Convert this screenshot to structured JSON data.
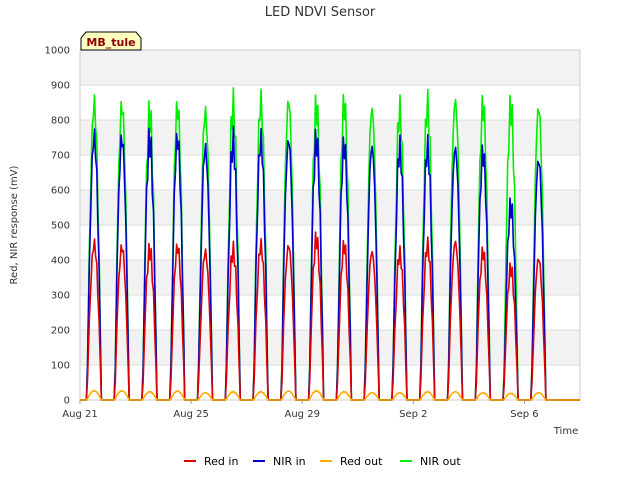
{
  "chart_data": {
    "type": "line",
    "title": "LED NDVI Sensor",
    "xlabel": "Time",
    "ylabel": "Red, NIR response (mV)",
    "ylim": [
      0,
      1000
    ],
    "yticks": [
      0,
      100,
      200,
      300,
      400,
      500,
      600,
      700,
      800,
      900,
      1000
    ],
    "xlim": [
      "2023-08-21",
      "2023-09-08"
    ],
    "xticks": [
      {
        "date": "2023-08-21",
        "label": "Aug 21"
      },
      {
        "date": "2023-08-25",
        "label": "Aug 25"
      },
      {
        "date": "2023-08-29",
        "label": "Aug 29"
      },
      {
        "date": "2023-09-02",
        "label": "Sep 2"
      },
      {
        "date": "2023-09-06",
        "label": "Sep 6"
      }
    ],
    "grid": true,
    "legend_position": "bottom",
    "site_label": "MB_tule",
    "days": [
      "2023-08-21",
      "2023-08-22",
      "2023-08-23",
      "2023-08-24",
      "2023-08-25",
      "2023-08-26",
      "2023-08-27",
      "2023-08-28",
      "2023-08-29",
      "2023-08-30",
      "2023-08-31",
      "2023-09-01",
      "2023-09-02",
      "2023-09-03",
      "2023-09-04",
      "2023-09-05",
      "2023-09-06",
      "2023-09-07"
    ],
    "series": [
      {
        "name": "Red in",
        "color": "#dd0000",
        "daily_peak": [
          475,
          465,
          455,
          465,
          450,
          455,
          470,
          470,
          490,
          470,
          450,
          445,
          470,
          480,
          450,
          400,
          430,
          0
        ]
      },
      {
        "name": "NIR in",
        "color": "#0000cc",
        "daily_peak": [
          800,
          795,
          790,
          795,
          765,
          785,
          790,
          790,
          790,
          775,
          770,
          765,
          765,
          765,
          750,
          590,
          730,
          0
        ]
      },
      {
        "name": "Red out",
        "color": "#ffaa00",
        "daily_peak": [
          28,
          28,
          25,
          27,
          22,
          25,
          25,
          27,
          28,
          25,
          22,
          22,
          25,
          25,
          22,
          20,
          22,
          0
        ]
      },
      {
        "name": "NIR out",
        "color": "#00ee00",
        "daily_peak": [
          900,
          895,
          870,
          890,
          875,
          895,
          905,
          910,
          890,
          900,
          885,
          880,
          895,
          910,
          895,
          890,
          890,
          0
        ]
      }
    ]
  }
}
